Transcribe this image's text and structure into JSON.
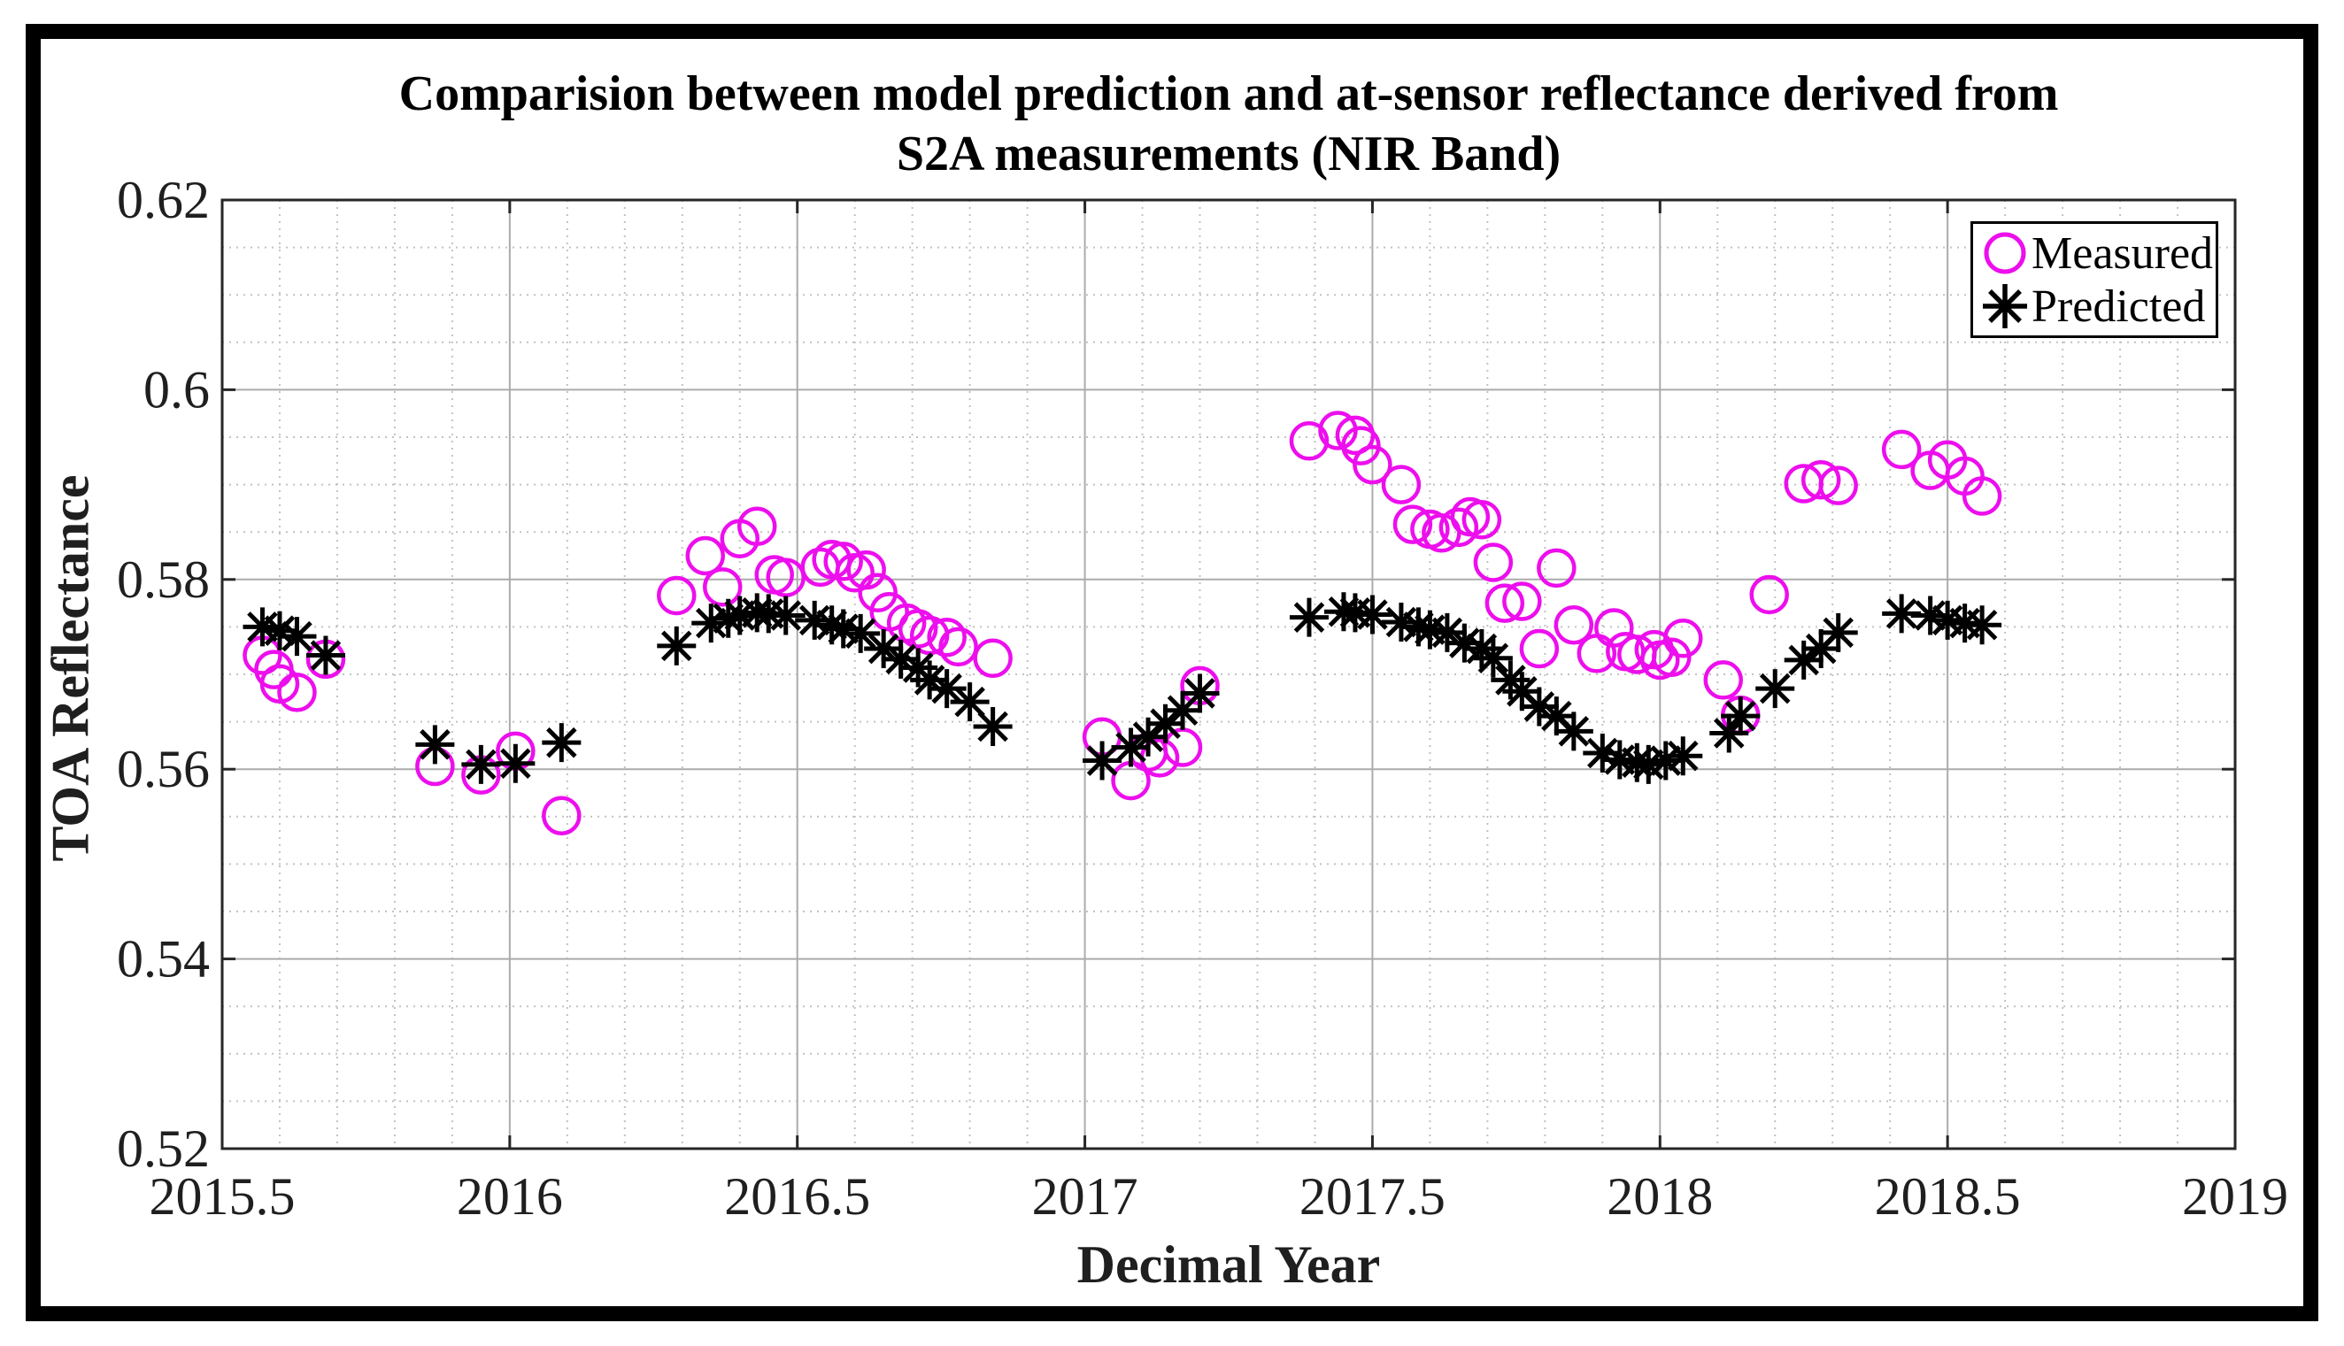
{
  "chart_data": {
    "type": "scatter",
    "title": "Comparision between model prediction and at-sensor reflectance derived from S2A measurements (NIR Band)",
    "title_line1": "Comparision between model prediction and at-sensor reflectance derived from",
    "title_line2": "S2A measurements (NIR Band)",
    "xlabel": "Decimal Year",
    "ylabel": "TOA Reflectance",
    "xlim": [
      2015.5,
      2019
    ],
    "ylim": [
      0.52,
      0.62
    ],
    "xticks": [
      2015.5,
      2016,
      2016.5,
      2017,
      2017.5,
      2018,
      2018.5,
      2019
    ],
    "xtick_labels": [
      "2015.5",
      "2016",
      "2016.5",
      "2017",
      "2017.5",
      "2018",
      "2018.5",
      "2019"
    ],
    "yticks": [
      0.52,
      0.54,
      0.56,
      0.58,
      0.6,
      0.62
    ],
    "ytick_labels": [
      "0.52",
      "0.54",
      "0.56",
      "0.58",
      "0.6",
      "0.62"
    ],
    "x_minor_step": 0.1,
    "y_minor_step": 0.005,
    "grid": true,
    "minor_grid": true,
    "legend_position": "top-right",
    "series": [
      {
        "name": "Measured",
        "marker": "circle",
        "color": "#ED0EED",
        "points": [
          [
            2015.57,
            0.572
          ],
          [
            2015.59,
            0.5705
          ],
          [
            2015.6,
            0.569
          ],
          [
            2015.63,
            0.5681
          ],
          [
            2015.68,
            0.5716
          ],
          [
            2015.87,
            0.5603
          ],
          [
            2015.95,
            0.5594
          ],
          [
            2016.01,
            0.5619
          ],
          [
            2016.09,
            0.5551
          ],
          [
            2016.29,
            0.5783
          ],
          [
            2016.34,
            0.5825
          ],
          [
            2016.37,
            0.5792
          ],
          [
            2016.4,
            0.5843
          ],
          [
            2016.43,
            0.5856
          ],
          [
            2016.46,
            0.5805
          ],
          [
            2016.48,
            0.5802
          ],
          [
            2016.54,
            0.5813
          ],
          [
            2016.56,
            0.5821
          ],
          [
            2016.58,
            0.5819
          ],
          [
            2016.6,
            0.5807
          ],
          [
            2016.62,
            0.581
          ],
          [
            2016.64,
            0.5786
          ],
          [
            2016.66,
            0.5766
          ],
          [
            2016.69,
            0.5754
          ],
          [
            2016.71,
            0.5748
          ],
          [
            2016.73,
            0.5741
          ],
          [
            2016.76,
            0.5739
          ],
          [
            2016.78,
            0.5729
          ],
          [
            2016.84,
            0.5717
          ],
          [
            2017.03,
            0.5634
          ],
          [
            2017.08,
            0.5588
          ],
          [
            2017.11,
            0.5618
          ],
          [
            2017.13,
            0.5612
          ],
          [
            2017.17,
            0.5623
          ],
          [
            2017.2,
            0.5688
          ],
          [
            2017.39,
            0.5946
          ],
          [
            2017.44,
            0.5957
          ],
          [
            2017.47,
            0.5952
          ],
          [
            2017.48,
            0.5941
          ],
          [
            2017.5,
            0.5921
          ],
          [
            2017.55,
            0.59
          ],
          [
            2017.57,
            0.5858
          ],
          [
            2017.6,
            0.5853
          ],
          [
            2017.62,
            0.5849
          ],
          [
            2017.65,
            0.5855
          ],
          [
            2017.67,
            0.5866
          ],
          [
            2017.69,
            0.5863
          ],
          [
            2017.71,
            0.5818
          ],
          [
            2017.73,
            0.5775
          ],
          [
            2017.76,
            0.5777
          ],
          [
            2017.79,
            0.5727
          ],
          [
            2017.82,
            0.5812
          ],
          [
            2017.85,
            0.5752
          ],
          [
            2017.89,
            0.5722
          ],
          [
            2017.92,
            0.5749
          ],
          [
            2017.94,
            0.5724
          ],
          [
            2017.96,
            0.5721
          ],
          [
            2017.99,
            0.5726
          ],
          [
            2018.0,
            0.5715
          ],
          [
            2018.02,
            0.5718
          ],
          [
            2018.04,
            0.5738
          ],
          [
            2018.11,
            0.5694
          ],
          [
            2018.14,
            0.5657
          ],
          [
            2018.19,
            0.5784
          ],
          [
            2018.25,
            0.5901
          ],
          [
            2018.28,
            0.5905
          ],
          [
            2018.31,
            0.5899
          ],
          [
            2018.42,
            0.5937
          ],
          [
            2018.47,
            0.5915
          ],
          [
            2018.5,
            0.5926
          ],
          [
            2018.53,
            0.5909
          ],
          [
            2018.56,
            0.5888
          ]
        ]
      },
      {
        "name": "Predicted",
        "marker": "asterisk",
        "color": "#000000",
        "points": [
          [
            2015.57,
            0.575
          ],
          [
            2015.6,
            0.5746
          ],
          [
            2015.63,
            0.574
          ],
          [
            2015.68,
            0.572
          ],
          [
            2015.87,
            0.5626
          ],
          [
            2015.95,
            0.5605
          ],
          [
            2016.01,
            0.5606
          ],
          [
            2016.09,
            0.5628
          ],
          [
            2016.29,
            0.573
          ],
          [
            2016.35,
            0.5754
          ],
          [
            2016.38,
            0.5759
          ],
          [
            2016.4,
            0.5762
          ],
          [
            2016.43,
            0.5765
          ],
          [
            2016.45,
            0.5764
          ],
          [
            2016.48,
            0.5762
          ],
          [
            2016.53,
            0.5757
          ],
          [
            2016.56,
            0.5752
          ],
          [
            2016.58,
            0.5748
          ],
          [
            2016.61,
            0.5743
          ],
          [
            2016.65,
            0.5727
          ],
          [
            2016.68,
            0.5716
          ],
          [
            2016.71,
            0.5707
          ],
          [
            2016.73,
            0.5694
          ],
          [
            2016.76,
            0.5685
          ],
          [
            2016.8,
            0.5671
          ],
          [
            2016.84,
            0.5645
          ],
          [
            2017.03,
            0.5609
          ],
          [
            2017.08,
            0.5623
          ],
          [
            2017.11,
            0.5634
          ],
          [
            2017.14,
            0.5648
          ],
          [
            2017.17,
            0.5662
          ],
          [
            2017.2,
            0.568
          ],
          [
            2017.39,
            0.576
          ],
          [
            2017.45,
            0.5766
          ],
          [
            2017.47,
            0.5765
          ],
          [
            2017.5,
            0.5763
          ],
          [
            2017.55,
            0.5755
          ],
          [
            2017.58,
            0.575
          ],
          [
            2017.6,
            0.5747
          ],
          [
            2017.63,
            0.5744
          ],
          [
            2017.66,
            0.5733
          ],
          [
            2017.69,
            0.5727
          ],
          [
            2017.71,
            0.5717
          ],
          [
            2017.74,
            0.5694
          ],
          [
            2017.76,
            0.5682
          ],
          [
            2017.79,
            0.5666
          ],
          [
            2017.82,
            0.5656
          ],
          [
            2017.85,
            0.564
          ],
          [
            2017.9,
            0.5617
          ],
          [
            2017.93,
            0.561
          ],
          [
            2017.96,
            0.5607
          ],
          [
            2017.98,
            0.5605
          ],
          [
            2018.01,
            0.5609
          ],
          [
            2018.04,
            0.5614
          ],
          [
            2018.12,
            0.5638
          ],
          [
            2018.14,
            0.5656
          ],
          [
            2018.2,
            0.5685
          ],
          [
            2018.25,
            0.5715
          ],
          [
            2018.28,
            0.5727
          ],
          [
            2018.31,
            0.5744
          ],
          [
            2018.42,
            0.5764
          ],
          [
            2018.47,
            0.5762
          ],
          [
            2018.5,
            0.5757
          ],
          [
            2018.53,
            0.5754
          ],
          [
            2018.56,
            0.5752
          ]
        ]
      }
    ]
  },
  "legend": {
    "items": [
      {
        "label": "Measured",
        "marker": "circle-icon",
        "color": "#ED0EED"
      },
      {
        "label": "Predicted",
        "marker": "asterisk-icon",
        "color": "#000000"
      }
    ]
  },
  "style": {
    "frame_color": "#000000",
    "grid_major": "#ababab",
    "grid_minor": "#c2c2c2",
    "axis_color": "#262626",
    "tick_label_color": "#1f1f1f"
  }
}
